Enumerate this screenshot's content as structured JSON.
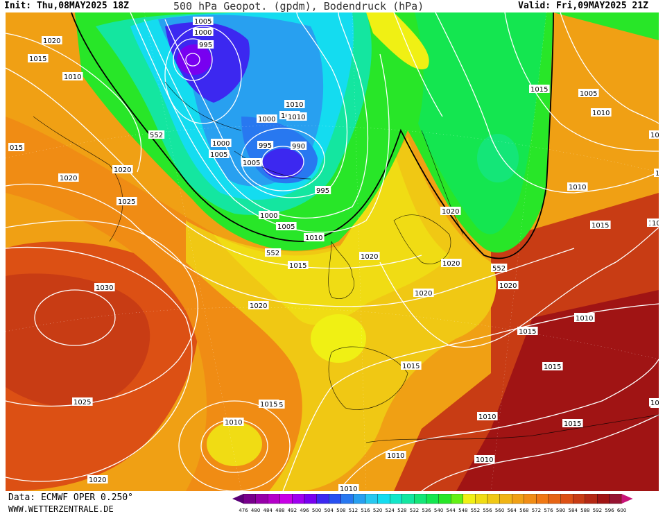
{
  "header": {
    "init": "Init: Thu,08MAY2025 18Z",
    "title": "500 hPa Geopot. (gpdm), Bodendruck (hPa)",
    "valid": "Valid: Fri,09MAY2025 21Z"
  },
  "footer": {
    "data_source": "Data: ECMWF OPER 0.250°",
    "website": "WWW.WETTERZENTRALE.DE"
  },
  "colorbar": {
    "ticks": [
      "476",
      "480",
      "484",
      "488",
      "492",
      "496",
      "500",
      "504",
      "508",
      "512",
      "516",
      "520",
      "524",
      "528",
      "532",
      "536",
      "540",
      "544",
      "548",
      "552",
      "556",
      "560",
      "564",
      "568",
      "572",
      "576",
      "580",
      "584",
      "588",
      "592",
      "596",
      "600"
    ],
    "colors": [
      "#5a0078",
      "#78008c",
      "#9600a8",
      "#b400c8",
      "#c800e6",
      "#a000f0",
      "#7800f0",
      "#3c28f0",
      "#2850f0",
      "#2878f0",
      "#28a0f0",
      "#28c8f0",
      "#14dcf0",
      "#14e6c8",
      "#14e6a0",
      "#14e678",
      "#14e650",
      "#28e628",
      "#64f014",
      "#f0f014",
      "#f0dc14",
      "#f0c814",
      "#f0b414",
      "#f0a014",
      "#f08c14",
      "#f07814",
      "#e66414",
      "#dc5014",
      "#c83c14",
      "#b42814",
      "#a01414",
      "#961432",
      "#c81478"
    ]
  },
  "map": {
    "contour_552_label": "552",
    "isobar_labels": [
      {
        "text": "1005"
      },
      {
        "text": "1000"
      },
      {
        "text": "995"
      },
      {
        "text": "1020"
      },
      {
        "text": "1015"
      },
      {
        "text": "1010"
      },
      {
        "text": "552"
      },
      {
        "text": "015"
      },
      {
        "text": "1020"
      },
      {
        "text": "1020"
      },
      {
        "text": "1025"
      },
      {
        "text": "1000"
      },
      {
        "text": "1005"
      },
      {
        "text": "1005"
      },
      {
        "text": "995"
      },
      {
        "text": "990"
      },
      {
        "text": "995"
      },
      {
        "text": "1010"
      },
      {
        "text": "1005"
      },
      {
        "text": "1000"
      },
      {
        "text": "1010"
      },
      {
        "text": "1000"
      },
      {
        "text": "1005"
      },
      {
        "text": "1010"
      },
      {
        "text": "552"
      },
      {
        "text": "1015"
      },
      {
        "text": "1030"
      },
      {
        "text": "1020"
      },
      {
        "text": "1025"
      },
      {
        "text": "1010"
      },
      {
        "text": "1015"
      },
      {
        "text": "1020"
      },
      {
        "text": "1010"
      },
      {
        "text": "1025"
      },
      {
        "text": "552"
      },
      {
        "text": "1015"
      },
      {
        "text": "1005"
      },
      {
        "text": "1010"
      },
      {
        "text": "1015"
      },
      {
        "text": "1010"
      },
      {
        "text": "1015"
      },
      {
        "text": "1015"
      },
      {
        "text": "1020"
      },
      {
        "text": "1020"
      },
      {
        "text": "1020"
      },
      {
        "text": "1020"
      },
      {
        "text": "552"
      },
      {
        "text": "1020"
      },
      {
        "text": "1015"
      },
      {
        "text": "1015"
      },
      {
        "text": "1015"
      },
      {
        "text": "1015"
      },
      {
        "text": "1010"
      },
      {
        "text": "1015"
      },
      {
        "text": "1010"
      },
      {
        "text": "1010"
      },
      {
        "text": "1010"
      },
      {
        "text": "1010"
      },
      {
        "text": "1020"
      },
      {
        "text": "1025"
      },
      {
        "text": "1015"
      },
      {
        "text": "10"
      }
    ]
  }
}
